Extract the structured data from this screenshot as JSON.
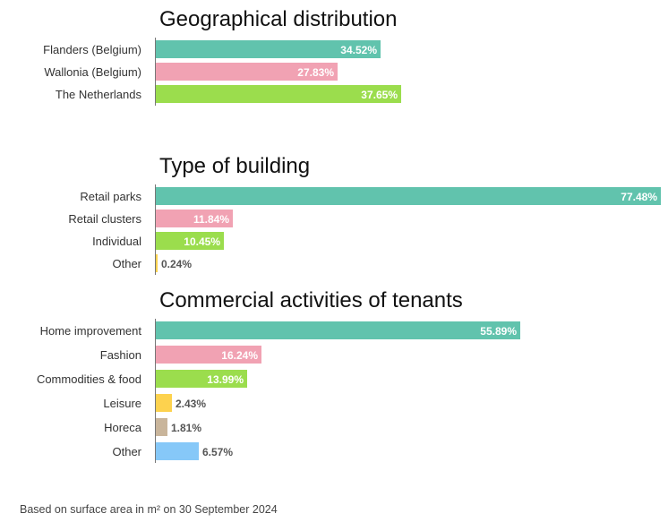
{
  "colors": [
    "#61c3ad",
    "#f1a2b3",
    "#9bdd4d",
    "#fdd24e",
    "#c9b59b",
    "#86c8f8"
  ],
  "chart_data": [
    {
      "type": "bar",
      "orientation": "horizontal",
      "title": "Geographical distribution",
      "categories": [
        "Flanders (Belgium)",
        "Wallonia (Belgium)",
        "The Netherlands"
      ],
      "values": [
        34.52,
        27.83,
        37.65
      ],
      "value_labels": [
        "34.52%",
        "27.83%",
        "37.65%"
      ],
      "xlim": [
        0,
        80
      ]
    },
    {
      "type": "bar",
      "orientation": "horizontal",
      "title": "Type of building",
      "categories": [
        "Retail parks",
        "Retail clusters",
        "Individual",
        "Other"
      ],
      "values": [
        77.48,
        11.84,
        10.45,
        0.24
      ],
      "value_labels": [
        "77.48%",
        "11.84%",
        "10.45%",
        "0.24%"
      ],
      "xlim": [
        0,
        80
      ]
    },
    {
      "type": "bar",
      "orientation": "horizontal",
      "title": "Commercial activities of tenants",
      "categories": [
        "Home improvement",
        "Fashion",
        "Commodities & food",
        "Leisure",
        "Horeca",
        "Other"
      ],
      "values": [
        55.89,
        16.24,
        13.99,
        2.43,
        1.81,
        6.57
      ],
      "value_labels": [
        "55.89%",
        "16.24%",
        "13.99%",
        "2.43%",
        "1.81%",
        "6.57%"
      ],
      "xlim": [
        0,
        80
      ]
    }
  ],
  "footnote": "Based on surface area in m² on 30 September 2024"
}
